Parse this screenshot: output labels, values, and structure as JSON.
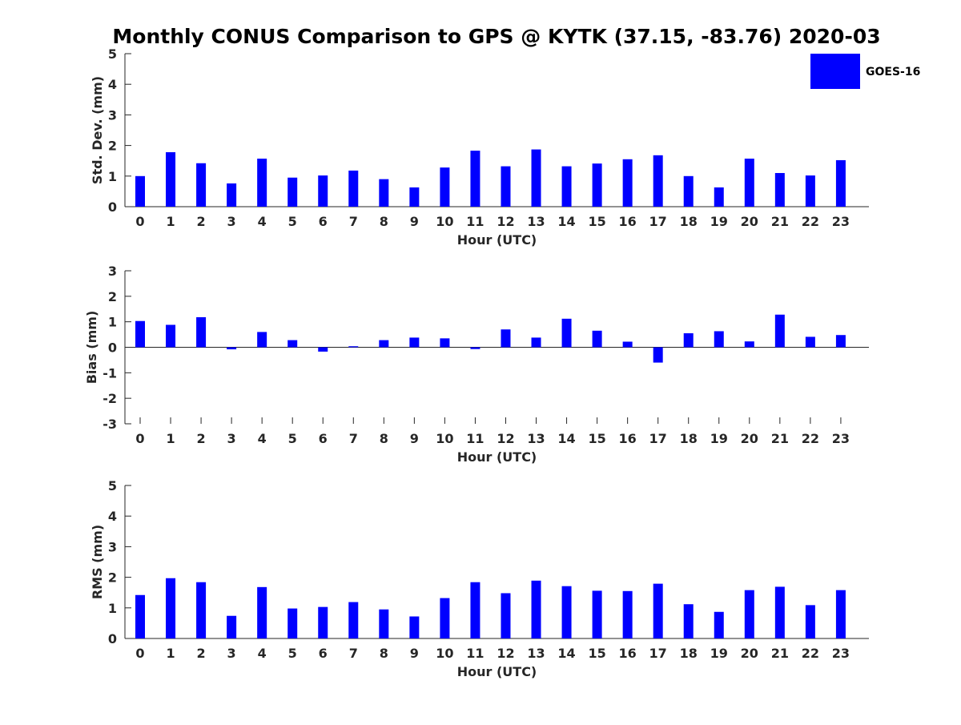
{
  "title": "Monthly CONUS Comparison to GPS @ KYTK (37.15, -83.76) 2020-03",
  "legend": {
    "label": "GOES-16",
    "color": "#0000FF"
  },
  "chart_data": [
    {
      "type": "bar",
      "title": "Monthly CONUS Comparison to GPS @ KYTK (37.15, -83.76) 2020-03",
      "xlabel": "Hour (UTC)",
      "ylabel": "Std. Dev. (mm)",
      "ylim": [
        0,
        5
      ],
      "yticks": [
        "0",
        "1",
        "2",
        "3",
        "4",
        "5"
      ],
      "categories": [
        "0",
        "1",
        "2",
        "3",
        "4",
        "5",
        "6",
        "7",
        "8",
        "9",
        "10",
        "11",
        "12",
        "13",
        "14",
        "15",
        "16",
        "17",
        "18",
        "19",
        "20",
        "21",
        "22",
        "23"
      ],
      "series": [
        {
          "name": "GOES-16",
          "color": "#0000FF",
          "values": [
            1.0,
            1.78,
            1.42,
            0.76,
            1.57,
            0.95,
            1.02,
            1.18,
            0.9,
            0.63,
            1.28,
            1.83,
            1.32,
            1.87,
            1.32,
            1.41,
            1.55,
            1.68,
            1.0,
            0.63,
            1.57,
            1.1,
            1.02,
            1.52
          ]
        }
      ],
      "grid": false,
      "legend_position": "top-right"
    },
    {
      "type": "bar",
      "xlabel": "Hour (UTC)",
      "ylabel": "Bias (mm)",
      "ylim": [
        -3,
        3
      ],
      "yticks": [
        "-3",
        "-2",
        "-1",
        "0",
        "1",
        "2",
        "3"
      ],
      "categories": [
        "0",
        "1",
        "2",
        "3",
        "4",
        "5",
        "6",
        "7",
        "8",
        "9",
        "10",
        "11",
        "12",
        "13",
        "14",
        "15",
        "16",
        "17",
        "18",
        "19",
        "20",
        "21",
        "22",
        "23"
      ],
      "series": [
        {
          "name": "GOES-16",
          "color": "#0000FF",
          "values": [
            1.03,
            0.88,
            1.18,
            -0.08,
            0.6,
            0.28,
            -0.17,
            0.04,
            0.28,
            0.38,
            0.35,
            -0.07,
            0.7,
            0.38,
            1.12,
            0.65,
            0.22,
            -0.6,
            0.55,
            0.63,
            0.23,
            1.28,
            0.41,
            0.48
          ]
        }
      ],
      "grid": false
    },
    {
      "type": "bar",
      "xlabel": "Hour (UTC)",
      "ylabel": "RMS (mm)",
      "ylim": [
        0,
        5
      ],
      "yticks": [
        "0",
        "1",
        "2",
        "3",
        "4",
        "5"
      ],
      "categories": [
        "0",
        "1",
        "2",
        "3",
        "4",
        "5",
        "6",
        "7",
        "8",
        "9",
        "10",
        "11",
        "12",
        "13",
        "14",
        "15",
        "16",
        "17",
        "18",
        "19",
        "20",
        "21",
        "22",
        "23"
      ],
      "series": [
        {
          "name": "GOES-16",
          "color": "#0000FF",
          "values": [
            1.42,
            1.97,
            1.84,
            0.74,
            1.68,
            0.98,
            1.03,
            1.19,
            0.95,
            0.72,
            1.32,
            1.84,
            1.48,
            1.89,
            1.71,
            1.56,
            1.55,
            1.79,
            1.12,
            0.87,
            1.58,
            1.69,
            1.09,
            1.58
          ]
        }
      ],
      "grid": false
    }
  ]
}
